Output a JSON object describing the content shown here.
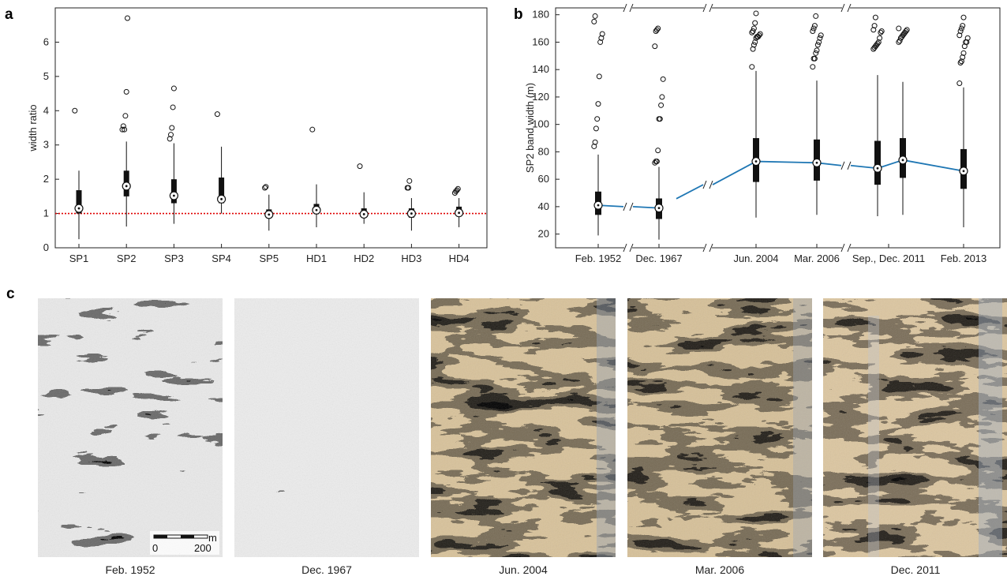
{
  "panels": {
    "a": "a",
    "b": "b",
    "c": "c"
  },
  "chart_data": [
    {
      "id": "a",
      "type": "box",
      "ylabel": "width ratio",
      "ylim": [
        0,
        7
      ],
      "yticks": [
        0,
        1,
        2,
        3,
        4,
        5,
        6
      ],
      "categories": [
        "SP1",
        "SP2",
        "SP3",
        "SP4",
        "SP5",
        "HD1",
        "HD2",
        "HD3",
        "HD4"
      ],
      "reference_line": {
        "y": 1,
        "color": "#e00000",
        "style": "dotted"
      },
      "boxes": [
        {
          "min": 0.25,
          "q1": 1.0,
          "median": 1.15,
          "q3": 1.68,
          "max": 2.25,
          "outliers": [
            4.0
          ]
        },
        {
          "min": 0.62,
          "q1": 1.5,
          "median": 1.8,
          "q3": 2.25,
          "max": 3.1,
          "outliers": [
            3.45,
            3.55,
            3.45,
            3.85,
            4.55,
            6.7
          ]
        },
        {
          "min": 0.7,
          "q1": 1.3,
          "median": 1.52,
          "q3": 2.0,
          "max": 3.05,
          "outliers": [
            3.18,
            3.3,
            3.5,
            4.1,
            4.65
          ]
        },
        {
          "min": 1.0,
          "q1": 1.3,
          "median": 1.42,
          "q3": 2.05,
          "max": 2.95,
          "outliers": [
            3.9
          ]
        },
        {
          "min": 0.5,
          "q1": 0.9,
          "median": 0.97,
          "q3": 1.12,
          "max": 1.55,
          "outliers": [
            1.75,
            1.78
          ]
        },
        {
          "min": 0.6,
          "q1": 1.0,
          "median": 1.1,
          "q3": 1.28,
          "max": 1.85,
          "outliers": [
            3.45
          ]
        },
        {
          "min": 0.7,
          "q1": 0.9,
          "median": 0.98,
          "q3": 1.15,
          "max": 1.62,
          "outliers": [
            2.38
          ]
        },
        {
          "min": 0.5,
          "q1": 0.88,
          "median": 1.0,
          "q3": 1.15,
          "max": 1.45,
          "outliers": [
            1.75,
            1.75,
            1.95
          ]
        },
        {
          "min": 0.6,
          "q1": 0.92,
          "median": 1.02,
          "q3": 1.2,
          "max": 1.45,
          "outliers": [
            1.6,
            1.65,
            1.68,
            1.72
          ]
        }
      ]
    },
    {
      "id": "b",
      "type": "box",
      "ylabel": "SP2 band width (m)",
      "ylim": [
        10,
        185
      ],
      "yticks": [
        20,
        40,
        60,
        80,
        100,
        120,
        140,
        160,
        180
      ],
      "tick_labels": [
        "Feb. 1952",
        "Dec. 1967",
        "Jun. 2004",
        "Mar. 2006",
        "Sep., Dec. 2011",
        "Feb. 2013"
      ],
      "axis_breaks": "yes",
      "series_color": "#1f77b4",
      "boxes": [
        {
          "date": "Feb. 1952",
          "min": 19,
          "q1": 34,
          "median": 41,
          "q3": 51,
          "max": 78,
          "outliers": [
            84,
            87,
            97,
            104,
            115,
            135,
            160,
            163,
            166,
            175,
            179
          ]
        },
        {
          "date": "Dec. 1967",
          "min": 16,
          "q1": 31,
          "median": 39,
          "q3": 46,
          "max": 69,
          "outliers": [
            72,
            73,
            73,
            81,
            104,
            104,
            114,
            120,
            133,
            157,
            168,
            169,
            170
          ]
        },
        {
          "date": "Jun. 2004",
          "min": 32,
          "q1": 58,
          "median": 73,
          "q3": 90,
          "max": 139,
          "outliers": [
            142,
            155,
            158,
            160,
            163,
            164,
            164,
            165,
            166,
            167,
            168,
            170,
            174,
            181
          ]
        },
        {
          "date": "Mar. 2006",
          "min": 34,
          "q1": 59,
          "median": 72,
          "q3": 89,
          "max": 132,
          "outliers": [
            142,
            148,
            148,
            152,
            154,
            158,
            160,
            163,
            165,
            168,
            170,
            172,
            179
          ]
        },
        {
          "date": "Sep. 2011",
          "min": 33,
          "q1": 56,
          "median": 68,
          "q3": 88,
          "max": 136,
          "outliers": [
            155,
            156,
            157,
            158,
            159,
            160,
            163,
            167,
            168,
            169,
            172,
            178
          ]
        },
        {
          "date": "Dec. 2011",
          "min": 34,
          "q1": 61,
          "median": 74,
          "q3": 90,
          "max": 131,
          "outliers": [
            160,
            161,
            163,
            164,
            165,
            166,
            167,
            168,
            169,
            170
          ]
        },
        {
          "date": "Feb. 2013",
          "min": 25,
          "q1": 53,
          "median": 66,
          "q3": 82,
          "max": 127,
          "outliers": [
            130,
            145,
            146,
            149,
            152,
            157,
            160,
            160,
            163,
            165,
            168,
            170,
            172,
            178
          ]
        }
      ]
    }
  ],
  "imagery": {
    "captions": [
      "Feb. 1952",
      "Dec. 1967",
      "Jun. 2004",
      "Mar. 2006",
      "Dec. 2011"
    ],
    "scale_unit": "m",
    "scale_start": "0",
    "scale_end": "200"
  }
}
